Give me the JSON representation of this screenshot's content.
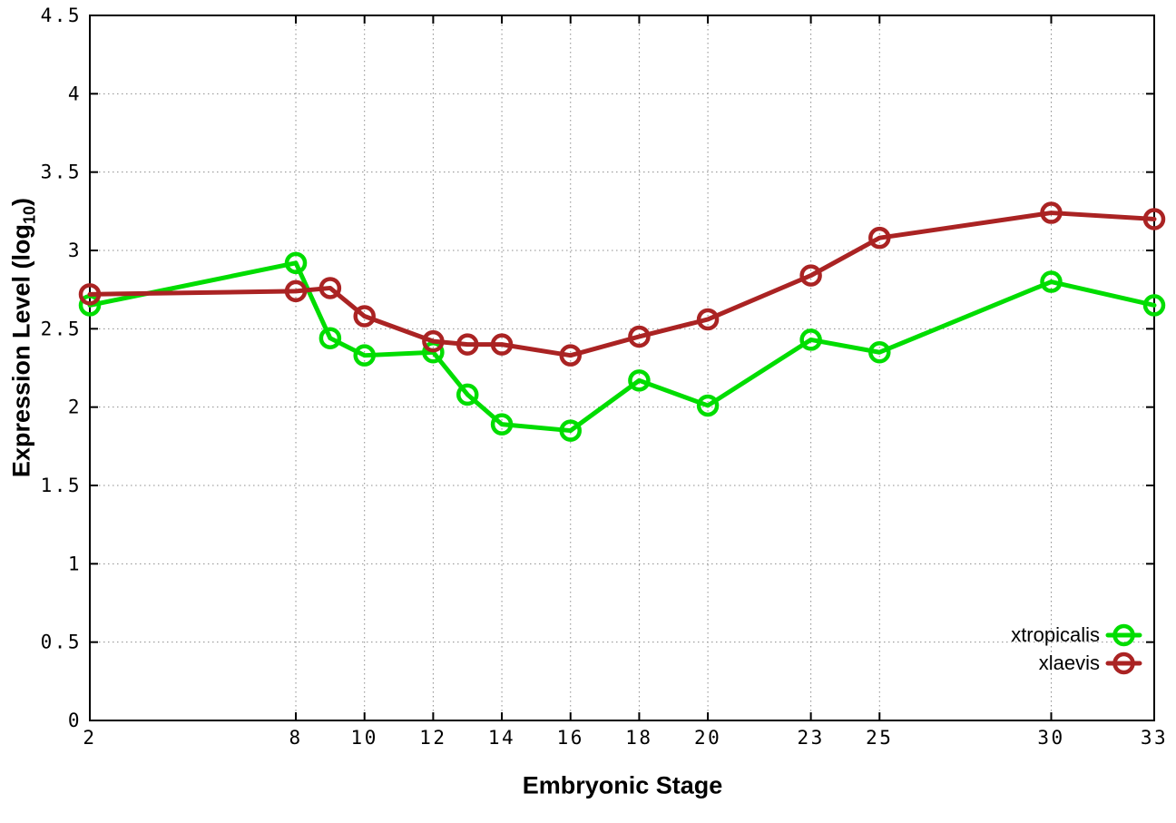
{
  "page": {
    "background": "#ffffff"
  },
  "chart_data": {
    "type": "line",
    "title": "",
    "xlabel": "Embryonic Stage",
    "ylabel": "Expression Level (log10)",
    "ylabel_parts": {
      "main": "Expression Level (log",
      "sub": "10",
      "end": ")"
    },
    "x": [
      2,
      8,
      9,
      10,
      12,
      13,
      14,
      16,
      18,
      20,
      23,
      25,
      30,
      33
    ],
    "series": [
      {
        "name": "xtropicalis",
        "color": "#00dd00",
        "values": [
          2.65,
          2.92,
          2.44,
          2.33,
          2.35,
          2.08,
          1.89,
          1.85,
          2.17,
          2.01,
          2.43,
          2.35,
          2.8,
          2.65
        ]
      },
      {
        "name": "xlaevis",
        "color": "#aa2323",
        "values": [
          2.72,
          2.74,
          2.76,
          2.58,
          2.42,
          2.4,
          2.4,
          2.33,
          2.45,
          2.56,
          2.84,
          3.08,
          3.24,
          3.2
        ]
      }
    ],
    "xlim": [
      2,
      33
    ],
    "ylim": [
      0,
      4.5
    ],
    "x_ticks": [
      2,
      8,
      10,
      12,
      14,
      16,
      18,
      20,
      23,
      25,
      30,
      33
    ],
    "x_tick_labels": [
      "2",
      "8",
      "10",
      "12",
      "14",
      "16",
      "18",
      "20",
      "23",
      "25",
      "30",
      "33"
    ],
    "y_ticks": [
      0,
      0.5,
      1,
      1.5,
      2,
      2.5,
      3,
      3.5,
      4,
      4.5
    ],
    "y_tick_labels": [
      "0",
      "0.5",
      "1",
      "1.5",
      "2",
      "2.5",
      "3",
      "3.5",
      "4",
      "4.5"
    ],
    "grid": true,
    "grid_style": "dotted",
    "grid_color": "#8c8c8c",
    "border_color": "#000000",
    "tick_label_color": "#000000",
    "marker": "open-circle",
    "legend_position": "bottom-right-inside",
    "legend_entries": [
      "xtropicalis",
      "xlaevis"
    ]
  }
}
